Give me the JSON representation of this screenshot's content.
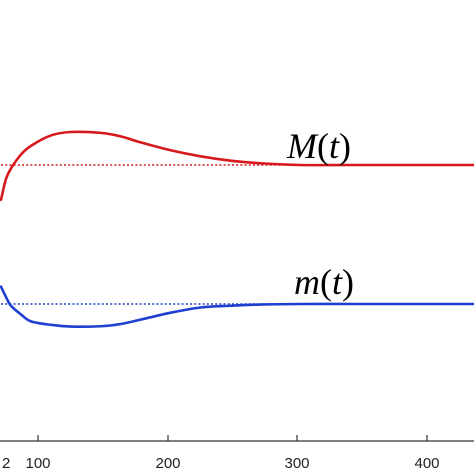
{
  "chart_data": {
    "type": "line",
    "title": "",
    "xlabel": "",
    "ylabel": "",
    "xlim": [
      0,
      474
    ],
    "x_ticks": [
      100,
      200,
      300,
      400
    ],
    "x_tick_labels": [
      "100",
      "200",
      "300",
      "400"
    ],
    "partial_left_tick_label": "2",
    "grid": false,
    "series": [
      {
        "name": "M(t)",
        "color": "#d7191c",
        "style": "solid",
        "label_text": "M(t)",
        "x": [
          0,
          5,
          10,
          20,
          30,
          50,
          70,
          100,
          120,
          140,
          170,
          200,
          230,
          260,
          300,
          350,
          400,
          474
        ],
        "y": [
          0.8,
          0.92,
          0.98,
          1.06,
          1.11,
          1.17,
          1.19,
          1.185,
          1.165,
          1.13,
          1.085,
          1.05,
          1.025,
          1.01,
          1.0,
          1.0,
          1.0,
          1.0
        ]
      },
      {
        "name": "M(t) equilibrium",
        "color": "#d7191c",
        "style": "dotted",
        "x": [
          0,
          474
        ],
        "y": [
          1.0,
          1.0
        ]
      },
      {
        "name": "m(t)",
        "color": "#1f3fd1",
        "style": "solid",
        "label_text": "m(t)",
        "x": [
          0,
          5,
          10,
          20,
          30,
          50,
          70,
          100,
          120,
          140,
          170,
          200,
          230,
          260,
          300,
          350,
          400,
          474
        ],
        "y": [
          0.3,
          0.24,
          0.19,
          0.14,
          0.1,
          0.08,
          0.07,
          0.072,
          0.085,
          0.11,
          0.15,
          0.18,
          0.19,
          0.197,
          0.2,
          0.2,
          0.2,
          0.2
        ]
      },
      {
        "name": "m(t) equilibrium",
        "color": "#1f3fd1",
        "style": "dotted",
        "x": [
          0,
          474
        ],
        "y": [
          0.2,
          0.2
        ]
      }
    ],
    "annotations": [
      {
        "text": "M(t)",
        "near_series": "M(t)",
        "at_x": 320
      },
      {
        "text": "m(t)",
        "near_series": "m(t)",
        "at_x": 328
      }
    ]
  },
  "axis_color": "#333333"
}
